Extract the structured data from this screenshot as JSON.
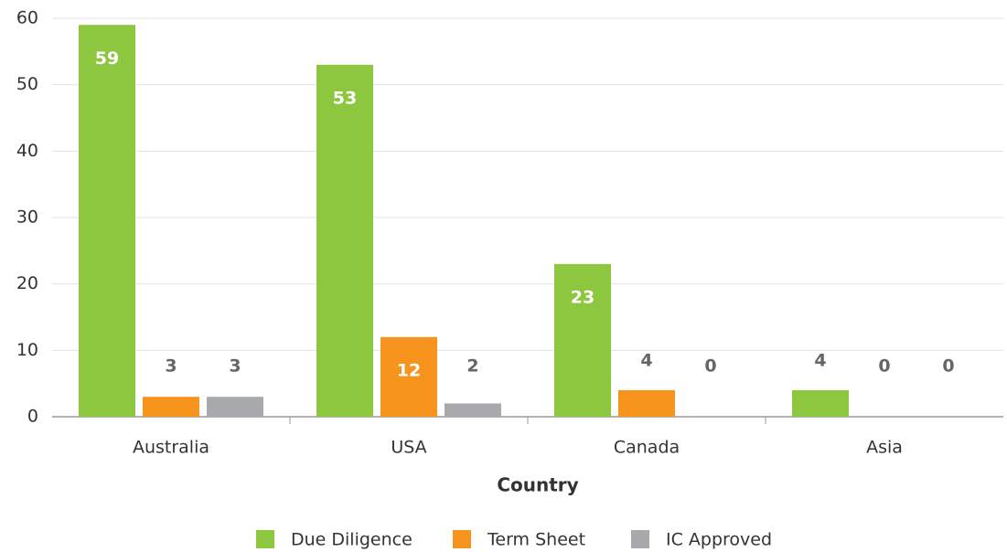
{
  "chart_data": {
    "type": "bar",
    "x_label": "Country",
    "categories": [
      "Australia",
      "USA",
      "Canada",
      "Asia"
    ],
    "series": [
      {
        "name": "Due Diligence",
        "color": "#8dc63f",
        "values": [
          59,
          53,
          23,
          4
        ]
      },
      {
        "name": "Term Sheet",
        "color": "#f7941d",
        "values": [
          3,
          12,
          4,
          0
        ]
      },
      {
        "name": "IC Approved",
        "color": "#a7a9ac",
        "values": [
          3,
          2,
          0,
          0
        ]
      }
    ],
    "ylim": [
      0,
      60
    ],
    "yticks": [
      0,
      10,
      20,
      30,
      40,
      50,
      60
    ],
    "grid": true,
    "legend": "bottom"
  }
}
